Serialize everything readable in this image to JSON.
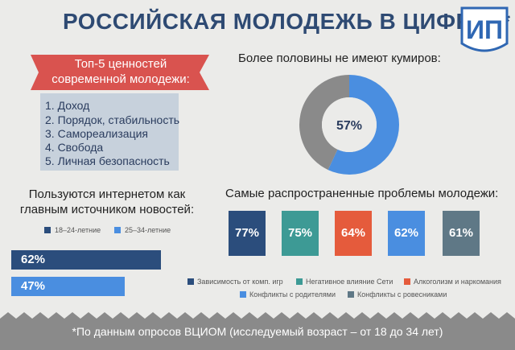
{
  "title": "РОССИЙСКАЯ МОЛОДЕЖЬ В ЦИФРАХ*",
  "logo": {
    "text": "ИП",
    "color": "#2f67b3"
  },
  "values_panel": {
    "title": "Топ-5 ценностей современной молодежи:",
    "items": [
      "1. Доход",
      "2. Порядок, стабильность",
      "3. Самореализация",
      "4. Свобода",
      "5. Личная безопасность"
    ]
  },
  "footer": "*По данным опросов ВЦИОМ (исследуемый возраст – от 18 до 34 лет)",
  "chart_data": [
    {
      "type": "pie",
      "title": "Более половины не имеют кумиров:",
      "center_label": "57%",
      "slices": [
        {
          "value": 57,
          "color": "#4a8ee0"
        },
        {
          "value": 43,
          "color": "#8a8a8a"
        }
      ]
    },
    {
      "type": "bar",
      "orientation": "horizontal",
      "title": "Пользуются интернетом как главным источником новостей:",
      "categories": [
        "18–24-летние",
        "25–34-летние"
      ],
      "values": [
        62,
        47
      ],
      "labels": [
        "62%",
        "47%"
      ],
      "colors": [
        "#2b4d7c",
        "#4a8ee0"
      ],
      "legend_position": "top"
    },
    {
      "type": "bar",
      "title": "Самые распространенные проблемы молодежи:",
      "categories": [
        "Зависимость от комп. игр",
        "Негативное влияние Сети",
        "Алкоголизм и наркомания",
        "Конфликты с родителями",
        "Конфликты с ровесниками"
      ],
      "values": [
        77,
        75,
        64,
        62,
        61
      ],
      "labels": [
        "77%",
        "75%",
        "64%",
        "62%",
        "61%"
      ],
      "colors": [
        "#2b4d7c",
        "#3d9a95",
        "#e55b3c",
        "#4a8ee0",
        "#5f7886"
      ],
      "legend_position": "bottom"
    }
  ]
}
